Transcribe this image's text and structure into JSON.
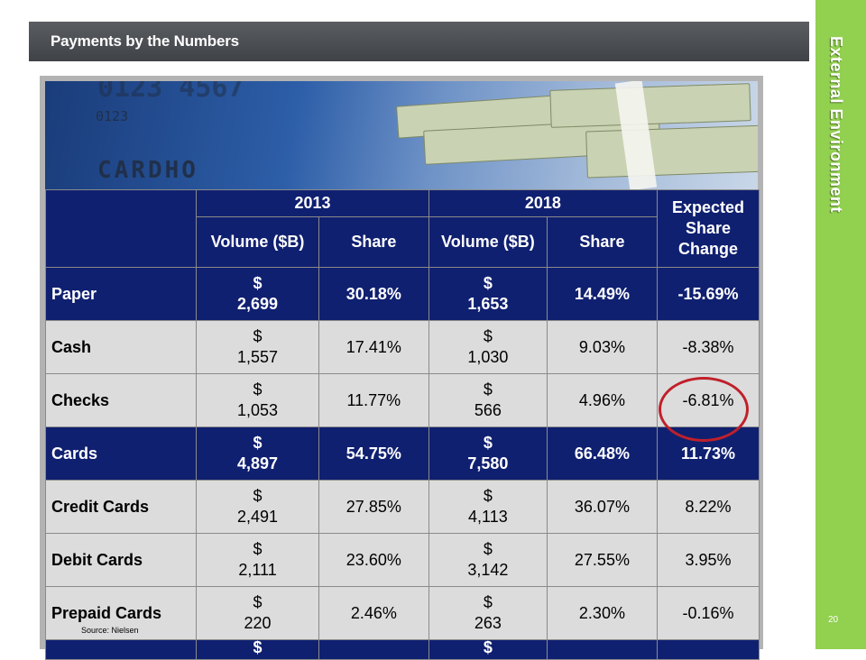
{
  "slide": {
    "title": "Payments by the Numbers",
    "section": "External Environment",
    "page_number": "20",
    "source": "Source: Nielsen"
  },
  "banner": {
    "card_digits": "0123",
    "card_word": "CARDHO",
    "card_top": "0123 4567"
  },
  "table": {
    "header_years": [
      "2013",
      "2018"
    ],
    "header_expected": "Expected Share Change",
    "sub_headers": [
      "Volume ($B)",
      "Share",
      "Volume ($B)",
      "Share"
    ],
    "rows": [
      {
        "label": "Paper",
        "style": "dark",
        "vol_2013": "$ 2,699",
        "share_2013": "30.18%",
        "vol_2018": "$ 1,653",
        "share_2018": "14.49%",
        "change": "-15.69%"
      },
      {
        "label": "Cash",
        "style": "light",
        "vol_2013": "$ 1,557",
        "share_2013": "17.41%",
        "vol_2018": "$ 1,030",
        "share_2018": "9.03%",
        "change": "-8.38%"
      },
      {
        "label": "Checks",
        "style": "light",
        "vol_2013": "$ 1,053",
        "share_2013": "11.77%",
        "vol_2018": "$ 566",
        "share_2018": "4.96%",
        "change": "-6.81%"
      },
      {
        "label": "Cards",
        "style": "dark",
        "vol_2013": "$ 4,897",
        "share_2013": "54.75%",
        "vol_2018": "$ 7,580",
        "share_2018": "66.48%",
        "change": "11.73%"
      },
      {
        "label": "Credit Cards",
        "style": "light",
        "vol_2013": "$ 2,491",
        "share_2013": "27.85%",
        "vol_2018": "$ 4,113",
        "share_2018": "36.07%",
        "change": "8.22%"
      },
      {
        "label": "Debit Cards",
        "style": "light",
        "vol_2013": "$ 2,111",
        "share_2013": "23.60%",
        "vol_2018": "$ 3,142",
        "share_2018": "27.55%",
        "change": "3.95%"
      },
      {
        "label": "Prepaid Cards",
        "style": "light",
        "vol_2013": "$ 220",
        "share_2013": "2.46%",
        "vol_2018": "$ 263",
        "share_2018": "2.30%",
        "change": "-0.16%"
      }
    ],
    "partial_row": {
      "vol_2013": "$",
      "vol_2018": "$"
    }
  },
  "colors": {
    "accent_green": "#92d050",
    "table_navy": "#102070",
    "highlight_red": "#c0202a"
  }
}
